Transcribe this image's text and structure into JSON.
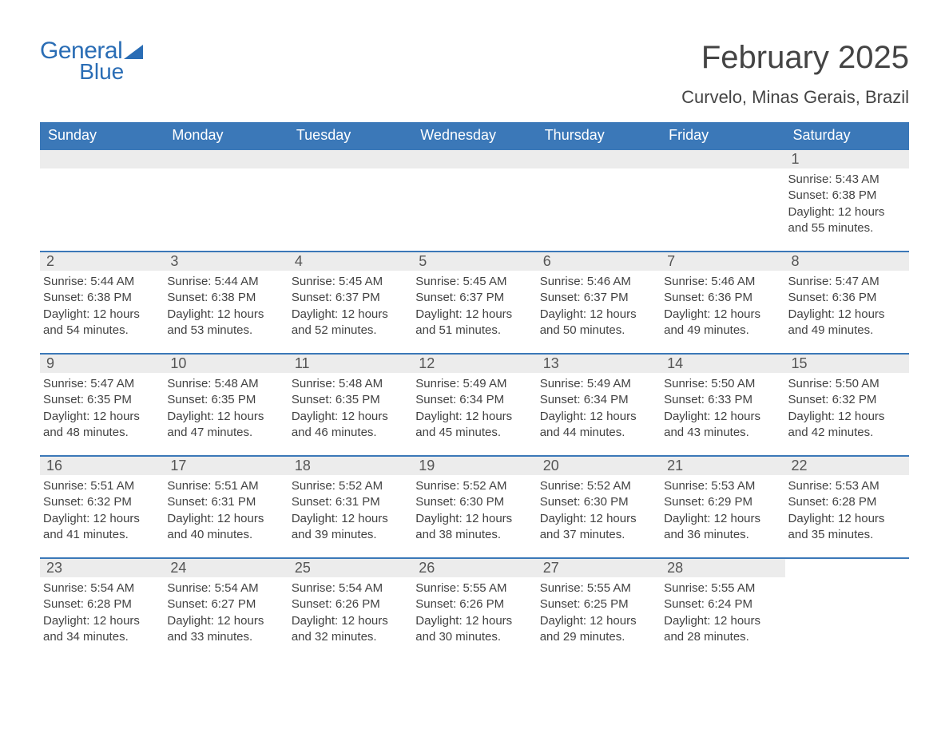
{
  "logo": {
    "line1": "General",
    "line2": "Blue"
  },
  "title": "February 2025",
  "location": "Curvelo, Minas Gerais, Brazil",
  "colors": {
    "header_bg": "#3b78b8",
    "header_text": "#ffffff",
    "daynum_bg": "#ececec",
    "text": "#424242",
    "logo": "#2a6db5"
  },
  "weekdays": [
    "Sunday",
    "Monday",
    "Tuesday",
    "Wednesday",
    "Thursday",
    "Friday",
    "Saturday"
  ],
  "labels": {
    "sunrise": "Sunrise:",
    "sunset": "Sunset:",
    "daylight": "Daylight:"
  },
  "weeks": [
    [
      null,
      null,
      null,
      null,
      null,
      null,
      {
        "n": "1",
        "sr": "5:43 AM",
        "ss": "6:38 PM",
        "dh": "12",
        "dm": "55"
      }
    ],
    [
      {
        "n": "2",
        "sr": "5:44 AM",
        "ss": "6:38 PM",
        "dh": "12",
        "dm": "54"
      },
      {
        "n": "3",
        "sr": "5:44 AM",
        "ss": "6:38 PM",
        "dh": "12",
        "dm": "53"
      },
      {
        "n": "4",
        "sr": "5:45 AM",
        "ss": "6:37 PM",
        "dh": "12",
        "dm": "52"
      },
      {
        "n": "5",
        "sr": "5:45 AM",
        "ss": "6:37 PM",
        "dh": "12",
        "dm": "51"
      },
      {
        "n": "6",
        "sr": "5:46 AM",
        "ss": "6:37 PM",
        "dh": "12",
        "dm": "50"
      },
      {
        "n": "7",
        "sr": "5:46 AM",
        "ss": "6:36 PM",
        "dh": "12",
        "dm": "49"
      },
      {
        "n": "8",
        "sr": "5:47 AM",
        "ss": "6:36 PM",
        "dh": "12",
        "dm": "49"
      }
    ],
    [
      {
        "n": "9",
        "sr": "5:47 AM",
        "ss": "6:35 PM",
        "dh": "12",
        "dm": "48"
      },
      {
        "n": "10",
        "sr": "5:48 AM",
        "ss": "6:35 PM",
        "dh": "12",
        "dm": "47"
      },
      {
        "n": "11",
        "sr": "5:48 AM",
        "ss": "6:35 PM",
        "dh": "12",
        "dm": "46"
      },
      {
        "n": "12",
        "sr": "5:49 AM",
        "ss": "6:34 PM",
        "dh": "12",
        "dm": "45"
      },
      {
        "n": "13",
        "sr": "5:49 AM",
        "ss": "6:34 PM",
        "dh": "12",
        "dm": "44"
      },
      {
        "n": "14",
        "sr": "5:50 AM",
        "ss": "6:33 PM",
        "dh": "12",
        "dm": "43"
      },
      {
        "n": "15",
        "sr": "5:50 AM",
        "ss": "6:32 PM",
        "dh": "12",
        "dm": "42"
      }
    ],
    [
      {
        "n": "16",
        "sr": "5:51 AM",
        "ss": "6:32 PM",
        "dh": "12",
        "dm": "41"
      },
      {
        "n": "17",
        "sr": "5:51 AM",
        "ss": "6:31 PM",
        "dh": "12",
        "dm": "40"
      },
      {
        "n": "18",
        "sr": "5:52 AM",
        "ss": "6:31 PM",
        "dh": "12",
        "dm": "39"
      },
      {
        "n": "19",
        "sr": "5:52 AM",
        "ss": "6:30 PM",
        "dh": "12",
        "dm": "38"
      },
      {
        "n": "20",
        "sr": "5:52 AM",
        "ss": "6:30 PM",
        "dh": "12",
        "dm": "37"
      },
      {
        "n": "21",
        "sr": "5:53 AM",
        "ss": "6:29 PM",
        "dh": "12",
        "dm": "36"
      },
      {
        "n": "22",
        "sr": "5:53 AM",
        "ss": "6:28 PM",
        "dh": "12",
        "dm": "35"
      }
    ],
    [
      {
        "n": "23",
        "sr": "5:54 AM",
        "ss": "6:28 PM",
        "dh": "12",
        "dm": "34"
      },
      {
        "n": "24",
        "sr": "5:54 AM",
        "ss": "6:27 PM",
        "dh": "12",
        "dm": "33"
      },
      {
        "n": "25",
        "sr": "5:54 AM",
        "ss": "6:26 PM",
        "dh": "12",
        "dm": "32"
      },
      {
        "n": "26",
        "sr": "5:55 AM",
        "ss": "6:26 PM",
        "dh": "12",
        "dm": "30"
      },
      {
        "n": "27",
        "sr": "5:55 AM",
        "ss": "6:25 PM",
        "dh": "12",
        "dm": "29"
      },
      {
        "n": "28",
        "sr": "5:55 AM",
        "ss": "6:24 PM",
        "dh": "12",
        "dm": "28"
      },
      null
    ]
  ]
}
